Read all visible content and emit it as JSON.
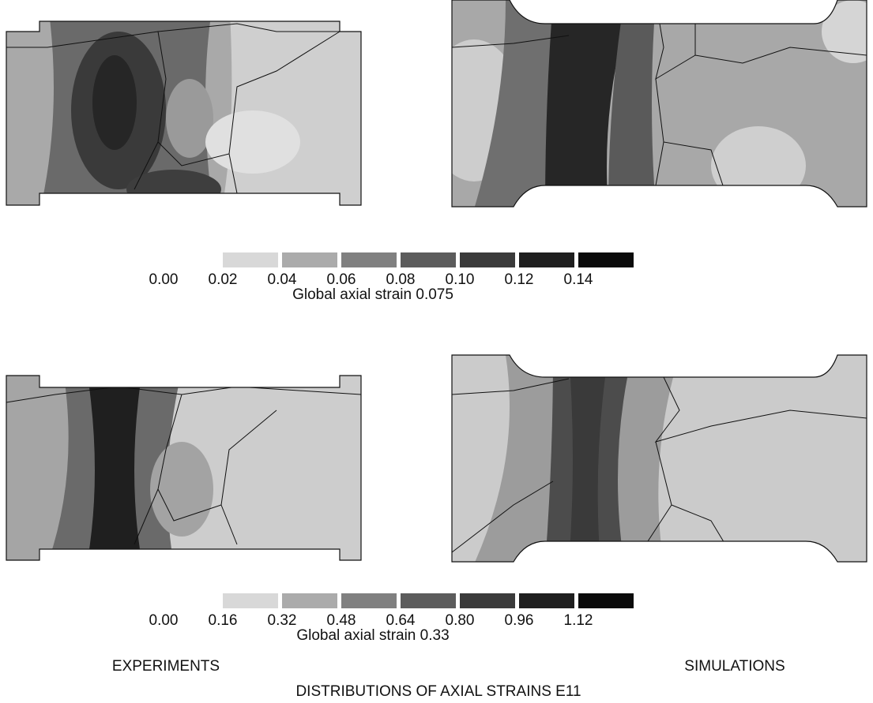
{
  "legends": [
    {
      "colors": [
        "#d8d8d8",
        "#ababab",
        "#808080",
        "#5c5c5c",
        "#3b3b3b",
        "#1f1f1f",
        "#0b0b0b"
      ],
      "ticks": [
        "0.00",
        "0.02",
        "0.04",
        "0.06",
        "0.08",
        "0.10",
        "0.12",
        "0.14"
      ],
      "caption": "Global axial strain 0.075"
    },
    {
      "colors": [
        "#d8d8d8",
        "#ababab",
        "#808080",
        "#5c5c5c",
        "#3b3b3b",
        "#1f1f1f",
        "#0b0b0b"
      ],
      "ticks": [
        "0.00",
        "0.16",
        "0.32",
        "0.48",
        "0.64",
        "0.80",
        "0.96",
        "1.12"
      ],
      "caption": "Global axial strain 0.33"
    }
  ],
  "labels": {
    "left": "EXPERIMENTS",
    "right": "SIMULATIONS"
  },
  "title": "DISTRIBUTIONS OF AXIAL STRAINS E11"
}
